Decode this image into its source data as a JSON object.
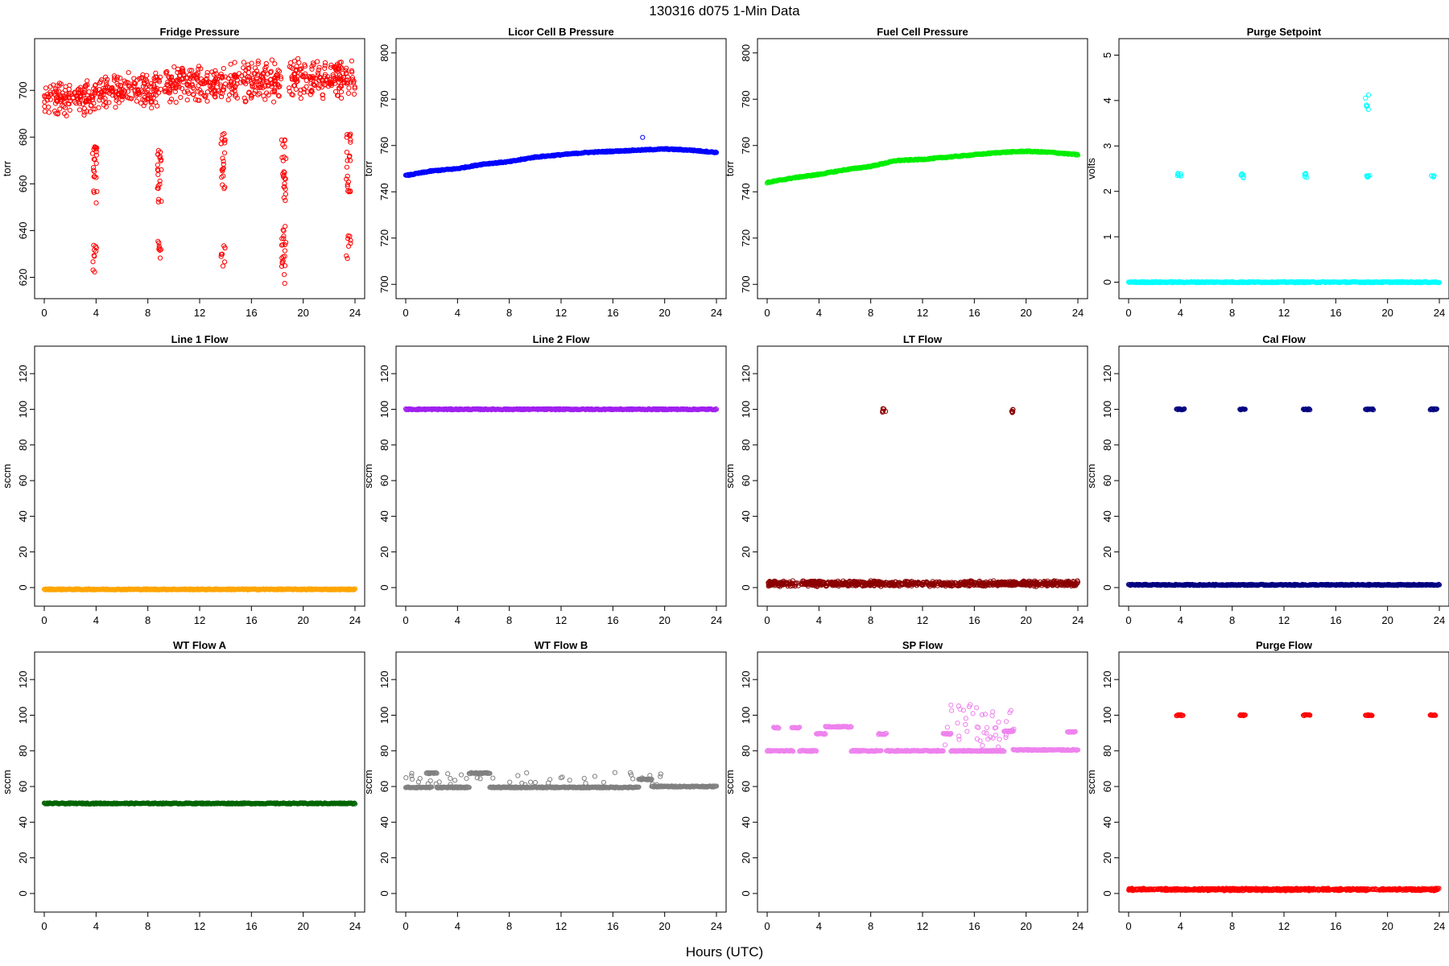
{
  "figure": {
    "title": "130316   d075   1-Min Data",
    "xlabel": "Hours (UTC)"
  },
  "chart_data": [
    {
      "type": "scatter",
      "title": "Fridge Pressure",
      "ylabel": "torr",
      "color": "#ff0000",
      "xlim": [
        0,
        24
      ],
      "xticks": [
        0,
        4,
        8,
        12,
        16,
        20,
        24
      ],
      "ylim": [
        615,
        718
      ],
      "yticks": [
        620,
        640,
        660,
        680,
        700
      ],
      "series": [
        {
          "kind": "band",
          "x": [
            0,
            4
          ],
          "y_range": [
            688,
            706
          ]
        },
        {
          "kind": "band",
          "x": [
            4.2,
            9
          ],
          "y_range": [
            692,
            708
          ]
        },
        {
          "kind": "band",
          "x": [
            9.3,
            14
          ],
          "y_range": [
            694,
            712
          ]
        },
        {
          "kind": "band",
          "x": [
            14.2,
            18.3
          ],
          "y_range": [
            694,
            714
          ]
        },
        {
          "kind": "band",
          "x": [
            18.9,
            24
          ],
          "y_range": [
            696,
            714
          ]
        },
        {
          "kind": "column",
          "x": 3.9,
          "y_range": [
            650,
            676
          ]
        },
        {
          "kind": "column",
          "x": 3.9,
          "y_range": [
            622,
            634
          ]
        },
        {
          "kind": "column",
          "x": 8.9,
          "y_range": [
            650,
            675
          ]
        },
        {
          "kind": "column",
          "x": 8.9,
          "y_range": [
            628,
            636
          ]
        },
        {
          "kind": "column",
          "x": 13.8,
          "y_range": [
            657,
            682
          ]
        },
        {
          "kind": "column",
          "x": 13.8,
          "y_range": [
            624,
            634
          ]
        },
        {
          "kind": "column",
          "x": 18.5,
          "y_range": [
            652,
            680
          ]
        },
        {
          "kind": "column",
          "x": 18.5,
          "y_range": [
            617,
            642
          ]
        },
        {
          "kind": "column",
          "x": 23.5,
          "y_range": [
            656,
            682
          ]
        },
        {
          "kind": "column",
          "x": 23.5,
          "y_range": [
            628,
            638
          ]
        }
      ]
    },
    {
      "type": "scatter",
      "title": "Licor Cell B Pressure",
      "ylabel": "torr",
      "color": "#0000ff",
      "xlim": [
        0,
        24
      ],
      "xticks": [
        0,
        4,
        8,
        12,
        16,
        20,
        24
      ],
      "ylim": [
        698,
        802
      ],
      "yticks": [
        700,
        720,
        740,
        760,
        780,
        800
      ],
      "series": [
        {
          "kind": "line",
          "x": [
            0,
            2,
            4,
            6,
            8,
            10,
            12,
            14,
            16,
            18,
            20,
            22,
            24
          ],
          "y": [
            747,
            749,
            750,
            752,
            753,
            755,
            756,
            757,
            757.5,
            758,
            758.5,
            758,
            757
          ]
        },
        {
          "kind": "point",
          "x": 18.3,
          "y": 763.5
        }
      ]
    },
    {
      "type": "scatter",
      "title": "Fuel Cell Pressure",
      "ylabel": "torr",
      "color": "#00ee00",
      "xlim": [
        0,
        24
      ],
      "xticks": [
        0,
        4,
        8,
        12,
        16,
        20,
        24
      ],
      "ylim": [
        698,
        802
      ],
      "yticks": [
        700,
        720,
        740,
        760,
        780,
        800
      ],
      "series": [
        {
          "kind": "line",
          "x": [
            0,
            2,
            4,
            6,
            8,
            10,
            12,
            14,
            16,
            18,
            20,
            22,
            24
          ],
          "y": [
            744,
            746,
            747.5,
            749.5,
            751,
            753.5,
            754,
            755,
            756,
            757,
            757.5,
            757,
            756
          ]
        }
      ]
    },
    {
      "type": "scatter",
      "title": "Purge Setpoint",
      "ylabel": "volts",
      "color": "#00ffff",
      "xlim": [
        0,
        24
      ],
      "xticks": [
        0,
        4,
        8,
        12,
        16,
        20,
        24
      ],
      "ylim": [
        -0.15,
        5.15
      ],
      "yticks": [
        0,
        1,
        2,
        3,
        4,
        5
      ],
      "series": [
        {
          "kind": "line",
          "x": [
            0,
            24
          ],
          "y": [
            0,
            0
          ]
        },
        {
          "kind": "cluster",
          "x": 3.9,
          "y_range": [
            2.3,
            2.4
          ]
        },
        {
          "kind": "cluster",
          "x": 8.8,
          "y_range": [
            2.3,
            2.4
          ]
        },
        {
          "kind": "cluster",
          "x": 13.7,
          "y_range": [
            2.3,
            2.4
          ]
        },
        {
          "kind": "cluster",
          "x": 18.5,
          "y_range": [
            2.3,
            2.35
          ]
        },
        {
          "kind": "cluster",
          "x": 18.4,
          "y_range": [
            3.8,
            4.2
          ]
        },
        {
          "kind": "cluster",
          "x": 23.5,
          "y_range": [
            2.3,
            2.35
          ]
        }
      ]
    },
    {
      "type": "scatter",
      "title": "Line 1 Flow",
      "ylabel": "sccm",
      "color": "#ffa500",
      "xlim": [
        0,
        24
      ],
      "xticks": [
        0,
        4,
        8,
        12,
        16,
        20,
        24
      ],
      "ylim": [
        -5,
        130
      ],
      "yticks": [
        0,
        20,
        40,
        60,
        80,
        100,
        120
      ],
      "series": [
        {
          "kind": "line",
          "x": [
            0,
            24
          ],
          "y": [
            -1,
            -1
          ]
        }
      ]
    },
    {
      "type": "scatter",
      "title": "Line 2 Flow",
      "ylabel": "sccm",
      "color": "#a020f0",
      "xlim": [
        0,
        24
      ],
      "xticks": [
        0,
        4,
        8,
        12,
        16,
        20,
        24
      ],
      "ylim": [
        -5,
        130
      ],
      "yticks": [
        0,
        20,
        40,
        60,
        80,
        100,
        120
      ],
      "series": [
        {
          "kind": "line",
          "x": [
            0,
            24
          ],
          "y": [
            100,
            100
          ]
        }
      ]
    },
    {
      "type": "scatter",
      "title": "LT Flow",
      "ylabel": "sccm",
      "color": "#8b0000",
      "xlim": [
        0,
        24
      ],
      "xticks": [
        0,
        4,
        8,
        12,
        16,
        20,
        24
      ],
      "ylim": [
        -5,
        130
      ],
      "yticks": [
        0,
        20,
        40,
        60,
        80,
        100,
        120
      ],
      "series": [
        {
          "kind": "band",
          "x": [
            0,
            24
          ],
          "y_range": [
            0.5,
            4
          ]
        },
        {
          "kind": "cluster",
          "x": 9.0,
          "y_range": [
            98,
            101
          ]
        },
        {
          "kind": "cluster",
          "x": 18.9,
          "y_range": [
            98,
            101
          ]
        }
      ]
    },
    {
      "type": "scatter",
      "title": "Cal Flow",
      "ylabel": "sccm",
      "color": "#000080",
      "xlim": [
        0,
        24
      ],
      "xticks": [
        0,
        4,
        8,
        12,
        16,
        20,
        24
      ],
      "ylim": [
        -5,
        130
      ],
      "yticks": [
        0,
        20,
        40,
        60,
        80,
        100,
        120
      ],
      "series": [
        {
          "kind": "line",
          "x": [
            0,
            24
          ],
          "y": [
            1.5,
            1.5
          ]
        },
        {
          "kind": "segment",
          "x": [
            3.7,
            4.3
          ],
          "y": 100
        },
        {
          "kind": "segment",
          "x": [
            8.6,
            9.0
          ],
          "y": 100
        },
        {
          "kind": "segment",
          "x": [
            13.5,
            14.0
          ],
          "y": 100
        },
        {
          "kind": "segment",
          "x": [
            18.3,
            18.9
          ],
          "y": 100
        },
        {
          "kind": "segment",
          "x": [
            23.3,
            23.8
          ],
          "y": 100
        }
      ]
    },
    {
      "type": "scatter",
      "title": "WT Flow A",
      "ylabel": "sccm",
      "color": "#006400",
      "xlim": [
        0,
        24
      ],
      "xticks": [
        0,
        4,
        8,
        12,
        16,
        20,
        24
      ],
      "ylim": [
        -5,
        130
      ],
      "yticks": [
        0,
        20,
        40,
        60,
        80,
        100,
        120
      ],
      "series": [
        {
          "kind": "line",
          "x": [
            0,
            24
          ],
          "y": [
            50.5,
            50.5
          ]
        }
      ]
    },
    {
      "type": "scatter",
      "title": "WT Flow B",
      "ylabel": "sccm",
      "color": "#808080",
      "xlim": [
        0,
        24
      ],
      "xticks": [
        0,
        4,
        8,
        12,
        16,
        20,
        24
      ],
      "ylim": [
        -5,
        130
      ],
      "yticks": [
        0,
        20,
        40,
        60,
        80,
        100,
        120
      ],
      "series": [
        {
          "kind": "segment",
          "x": [
            0,
            2.0
          ],
          "y": 59.5
        },
        {
          "kind": "segment",
          "x": [
            1.6,
            2.4
          ],
          "y": 67.5
        },
        {
          "kind": "segment",
          "x": [
            2.4,
            4.9
          ],
          "y": 59.5
        },
        {
          "kind": "segment",
          "x": [
            4.9,
            6.5
          ],
          "y": 67.5
        },
        {
          "kind": "segment",
          "x": [
            6.5,
            18.0
          ],
          "y": 59.5
        },
        {
          "kind": "segment",
          "x": [
            18.0,
            19.0
          ],
          "y": 64
        },
        {
          "kind": "segment",
          "x": [
            19.0,
            24
          ],
          "y": 60
        },
        {
          "kind": "scatter",
          "x_range": [
            0,
            20
          ],
          "y_range": [
            61,
            68
          ]
        }
      ]
    },
    {
      "type": "scatter",
      "title": "SP Flow",
      "ylabel": "sccm",
      "color": "#ee82ee",
      "xlim": [
        0,
        24
      ],
      "xticks": [
        0,
        4,
        8,
        12,
        16,
        20,
        24
      ],
      "ylim": [
        -5,
        130
      ],
      "yticks": [
        0,
        20,
        40,
        60,
        80,
        100,
        120
      ],
      "series": [
        {
          "kind": "segment",
          "x": [
            0,
            2.0
          ],
          "y": 80
        },
        {
          "kind": "segment",
          "x": [
            0.5,
            0.9
          ],
          "y": 93
        },
        {
          "kind": "segment",
          "x": [
            1.9,
            2.5
          ],
          "y": 93
        },
        {
          "kind": "segment",
          "x": [
            2.5,
            3.8
          ],
          "y": 80
        },
        {
          "kind": "segment",
          "x": [
            3.8,
            4.5
          ],
          "y": 89.5
        },
        {
          "kind": "segment",
          "x": [
            4.5,
            6.5
          ],
          "y": 93.5
        },
        {
          "kind": "segment",
          "x": [
            6.5,
            8.8
          ],
          "y": 80
        },
        {
          "kind": "segment",
          "x": [
            8.6,
            9.2
          ],
          "y": 89.5
        },
        {
          "kind": "segment",
          "x": [
            9.2,
            13.6
          ],
          "y": 80
        },
        {
          "kind": "segment",
          "x": [
            13.6,
            14.2
          ],
          "y": 89.5
        },
        {
          "kind": "segment",
          "x": [
            14.2,
            18.3
          ],
          "y": 80
        },
        {
          "kind": "segment",
          "x": [
            18.3,
            19.0
          ],
          "y": 91
        },
        {
          "kind": "segment",
          "x": [
            19.0,
            24
          ],
          "y": 80.5
        },
        {
          "kind": "segment",
          "x": [
            23.2,
            23.8
          ],
          "y": 90.5
        },
        {
          "kind": "scatter",
          "x_range": [
            13.5,
            19.2
          ],
          "y_range": [
            82,
            106
          ]
        }
      ]
    },
    {
      "type": "scatter",
      "title": "Purge Flow",
      "ylabel": "sccm",
      "color": "#ff0000",
      "xlim": [
        0,
        24
      ],
      "xticks": [
        0,
        4,
        8,
        12,
        16,
        20,
        24
      ],
      "ylim": [
        -5,
        130
      ],
      "yticks": [
        0,
        20,
        40,
        60,
        80,
        100,
        120
      ],
      "series": [
        {
          "kind": "band",
          "x": [
            0,
            24
          ],
          "y_range": [
            1.5,
            3
          ]
        },
        {
          "kind": "segment",
          "x": [
            3.7,
            4.2
          ],
          "y": 100
        },
        {
          "kind": "segment",
          "x": [
            8.6,
            9.0
          ],
          "y": 100
        },
        {
          "kind": "segment",
          "x": [
            13.5,
            14.0
          ],
          "y": 100
        },
        {
          "kind": "segment",
          "x": [
            18.3,
            18.8
          ],
          "y": 100
        },
        {
          "kind": "segment",
          "x": [
            23.3,
            23.7
          ],
          "y": 100
        }
      ]
    }
  ]
}
